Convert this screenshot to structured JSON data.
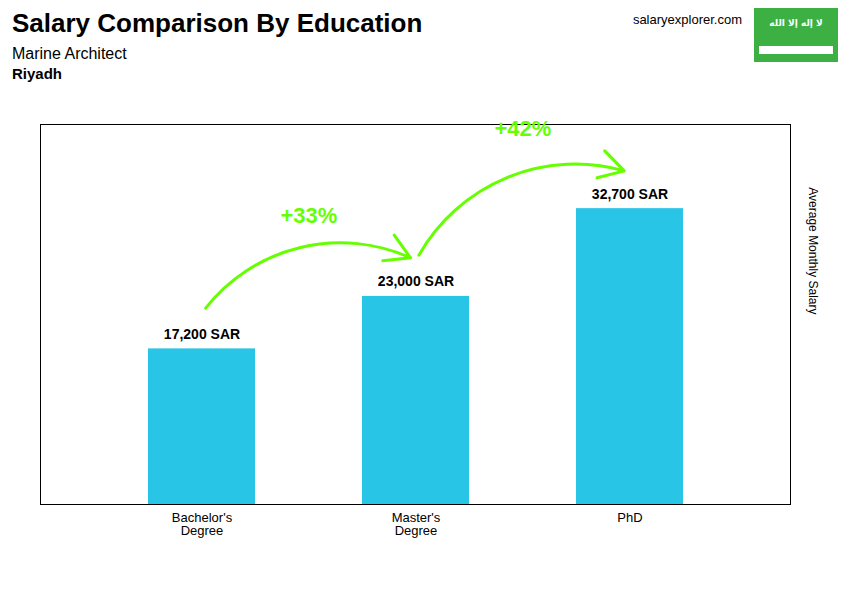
{
  "chart_data": {
    "type": "bar",
    "title": "Salary Comparison By Education",
    "subtitle": [
      "Marine Architect",
      "Riyadh"
    ],
    "ylabel": "Average Monthly Salary",
    "categories": [
      "Bachelor's\nDegree",
      "Master's\nDegree",
      "PhD"
    ],
    "values": [
      17200,
      23000,
      32700
    ],
    "value_labels": [
      "17,200 SAR",
      "23,000 SAR",
      "32,700 SAR"
    ],
    "data_labels": true,
    "color": "#29c5e6",
    "ylim": [
      0,
      42000
    ],
    "yticks": [],
    "tick_labels": "x",
    "grid": false,
    "annotations": [
      {
        "text": "+33%",
        "from": "Bachelor's\nDegree",
        "to": "Master's\nDegree",
        "color": "#66ff00"
      },
      {
        "text": "+42%",
        "from": "Master's\nDegree",
        "to": "PhD",
        "color": "#66ff00"
      },
      {
        "text": "salaryexplorer.com"
      },
      {
        "text": "لا إله إلا الله",
        "color": "#3cb043"
      }
    ]
  }
}
